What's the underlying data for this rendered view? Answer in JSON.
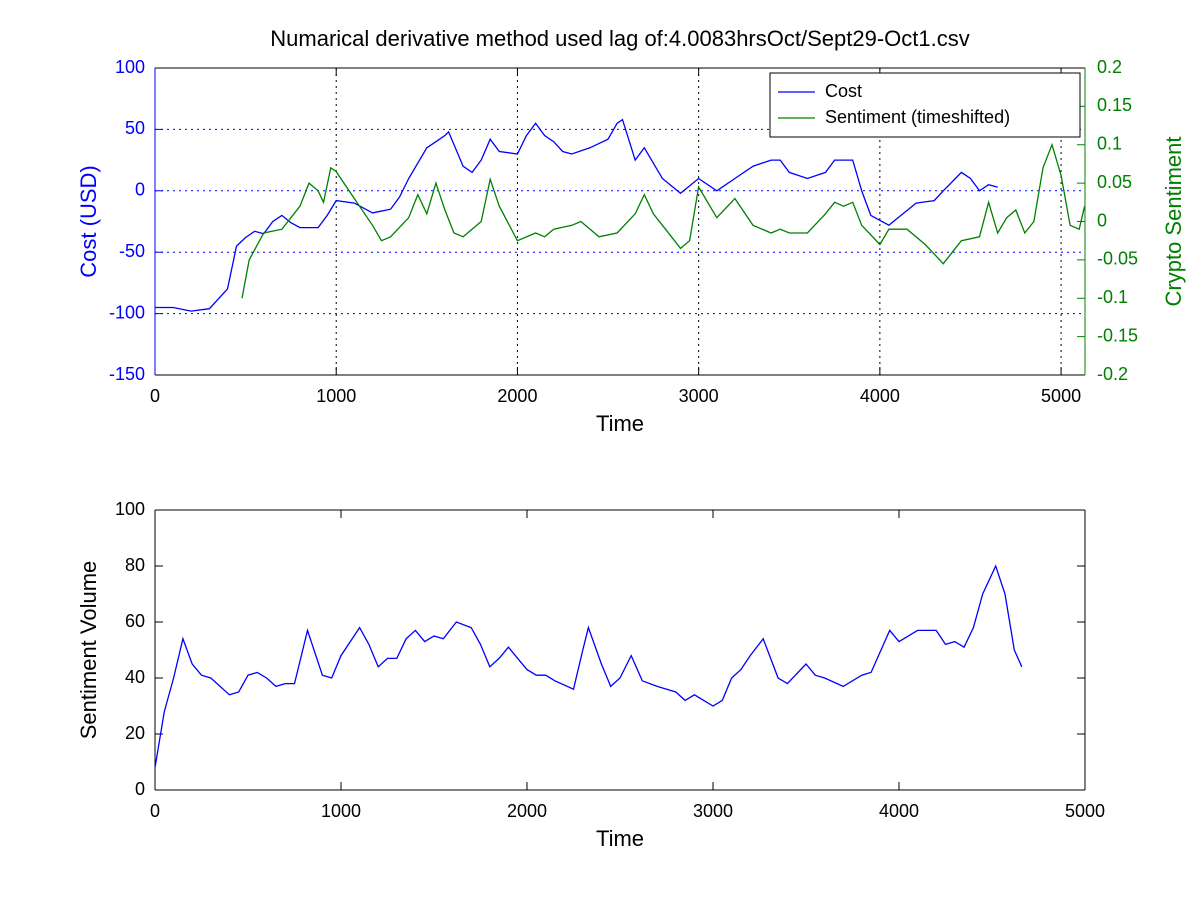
{
  "chart_data": [
    {
      "type": "line",
      "title": "Numarical derivative method used lag of:4.0083hrsOct/Sept29-Oct1.csv",
      "xlabel": "Time",
      "ylabel": "Cost (USD)",
      "y2label": "Crypto Sentiment",
      "xlim": [
        0,
        5132
      ],
      "xticks": [
        0,
        1000,
        2000,
        3000,
        4000,
        5000
      ],
      "ylim": [
        -150,
        100
      ],
      "yticks": [
        -150,
        -100,
        -50,
        0,
        50,
        100
      ],
      "y2lim": [
        -0.2,
        0.2
      ],
      "y2ticks": [
        -0.2,
        -0.15,
        -0.1,
        -0.05,
        0,
        0.05,
        0.1,
        0.15,
        0.2
      ],
      "grid": true,
      "legend": "northeast",
      "ylabel_color": "#0000ff",
      "y2label_color": "#008000",
      "series": [
        {
          "name": "Cost",
          "color": "#0000ff",
          "x": [
            0,
            100,
            200,
            300,
            400,
            450,
            500,
            550,
            600,
            650,
            700,
            750,
            800,
            900,
            950,
            1000,
            1100,
            1200,
            1300,
            1350,
            1400,
            1500,
            1550,
            1600,
            1620,
            1700,
            1750,
            1800,
            1850,
            1900,
            2000,
            2050,
            2100,
            2150,
            2200,
            2250,
            2300,
            2400,
            2500,
            2550,
            2580,
            2650,
            2700,
            2800,
            2900,
            3000,
            3100,
            3200,
            3300,
            3400,
            3450,
            3500,
            3600,
            3700,
            3750,
            3800,
            3850,
            3900,
            3950,
            4050,
            4100,
            4200,
            4300,
            4350,
            4450,
            4500,
            4550,
            4600,
            4650
          ],
          "values": [
            -95,
            -95,
            -98,
            -96,
            -80,
            -45,
            -38,
            -33,
            -35,
            -25,
            -20,
            -26,
            -30,
            -30,
            -20,
            -8,
            -10,
            -18,
            -15,
            -5,
            10,
            35,
            40,
            45,
            48,
            20,
            15,
            25,
            42,
            32,
            30,
            45,
            55,
            45,
            40,
            32,
            30,
            35,
            42,
            55,
            58,
            25,
            35,
            10,
            -2,
            10,
            0,
            10,
            20,
            25,
            25,
            15,
            10,
            15,
            25,
            25,
            25,
            0,
            -20,
            -28,
            -22,
            -10,
            -8,
            0,
            15,
            10,
            0,
            5,
            3
          ]
        },
        {
          "name": "Sentiment (timeshifted)",
          "color": "#008000",
          "axis": "y2",
          "x": [
            480,
            520,
            600,
            700,
            800,
            850,
            900,
            930,
            970,
            1000,
            1100,
            1200,
            1250,
            1300,
            1400,
            1450,
            1500,
            1550,
            1600,
            1650,
            1700,
            1800,
            1850,
            1900,
            2000,
            2100,
            2150,
            2200,
            2300,
            2350,
            2450,
            2550,
            2650,
            2700,
            2750,
            2850,
            2900,
            2950,
            3000,
            3100,
            3200,
            3300,
            3400,
            3450,
            3500,
            3600,
            3700,
            3750,
            3800,
            3850,
            3900,
            4000,
            4050,
            4150,
            4250,
            4350,
            4400,
            4450,
            4550,
            4600,
            4650,
            4700,
            4750,
            4800,
            4850,
            4900,
            4950,
            5000,
            5050,
            5100,
            5130
          ],
          "values": [
            -0.1,
            -0.05,
            -0.015,
            -0.01,
            0.02,
            0.05,
            0.04,
            0.025,
            0.07,
            0.065,
            0.03,
            -0.005,
            -0.025,
            -0.02,
            0.005,
            0.035,
            0.01,
            0.05,
            0.015,
            -0.015,
            -0.02,
            0.0,
            0.055,
            0.02,
            -0.025,
            -0.015,
            -0.02,
            -0.01,
            -0.005,
            0.0,
            -0.02,
            -0.015,
            0.01,
            0.035,
            0.01,
            -0.02,
            -0.035,
            -0.025,
            0.045,
            0.005,
            0.03,
            -0.005,
            -0.015,
            -0.01,
            -0.015,
            -0.015,
            0.01,
            0.025,
            0.02,
            0.025,
            -0.005,
            -0.03,
            -0.01,
            -0.01,
            -0.03,
            -0.055,
            -0.04,
            -0.025,
            -0.02,
            0.025,
            -0.015,
            0.005,
            0.015,
            -0.015,
            0.0,
            0.07,
            0.1,
            0.06,
            -0.005,
            -0.01,
            0.02
          ]
        }
      ]
    },
    {
      "type": "line",
      "xlabel": "Time",
      "ylabel": "Sentiment Volume",
      "xlim": [
        0,
        5000
      ],
      "xticks": [
        0,
        1000,
        2000,
        3000,
        4000,
        5000
      ],
      "ylim": [
        0,
        100
      ],
      "yticks": [
        0,
        20,
        40,
        60,
        80,
        100
      ],
      "grid": false,
      "series": [
        {
          "color": "#0000ff",
          "x": [
            0,
            50,
            100,
            150,
            200,
            250,
            300,
            400,
            450,
            500,
            550,
            600,
            650,
            700,
            750,
            820,
            900,
            950,
            1000,
            1100,
            1150,
            1200,
            1250,
            1300,
            1350,
            1400,
            1450,
            1500,
            1550,
            1620,
            1700,
            1750,
            1800,
            1850,
            1900,
            1950,
            2000,
            2050,
            2100,
            2150,
            2250,
            2300,
            2330,
            2400,
            2450,
            2500,
            2560,
            2620,
            2700,
            2800,
            2850,
            2900,
            2950,
            3000,
            3050,
            3100,
            3150,
            3200,
            3270,
            3350,
            3400,
            3500,
            3550,
            3600,
            3700,
            3800,
            3850,
            3950,
            4000,
            4100,
            4150,
            4200,
            4250,
            4300,
            4350,
            4400,
            4450,
            4520,
            4570,
            4620,
            4660
          ],
          "values": [
            8,
            28,
            40,
            54,
            45,
            41,
            40,
            34,
            35,
            41,
            42,
            40,
            37,
            38,
            38,
            57,
            41,
            40,
            48,
            58,
            52,
            44,
            47,
            47,
            54,
            57,
            53,
            55,
            54,
            60,
            58,
            52,
            44,
            47,
            51,
            47,
            43,
            41,
            41,
            39,
            36,
            50,
            58,
            45,
            37,
            40,
            48,
            39,
            37,
            35,
            32,
            34,
            32,
            30,
            32,
            40,
            43,
            48,
            54,
            40,
            38,
            45,
            41,
            40,
            37,
            41,
            42,
            57,
            53,
            57,
            57,
            57,
            52,
            53,
            51,
            58,
            70,
            80,
            70,
            50,
            44
          ]
        }
      ]
    }
  ]
}
